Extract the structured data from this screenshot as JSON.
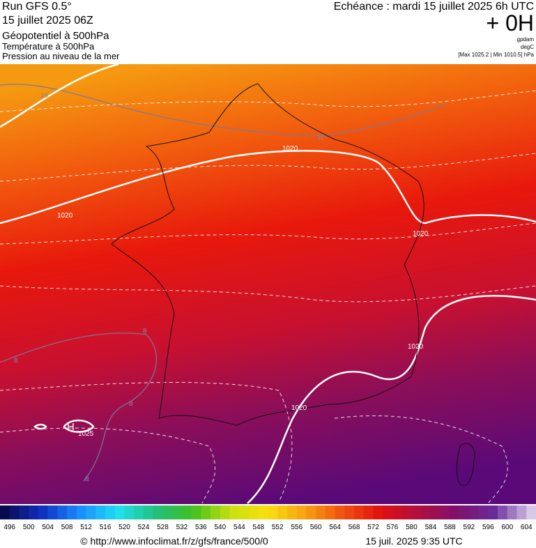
{
  "header": {
    "run": "Run GFS 0.5°",
    "date": "15 juillet 2025 06Z",
    "variable": "Géopotentiel à 500hPa",
    "temperature": "Température à 500hPa",
    "pressure": "Pression au niveau de la mer",
    "echeance": "Echéance : mardi 15 juillet 2025 6h UTC",
    "lead": "+ 0H",
    "units": [
      "gpdam",
      "degC"
    ],
    "range": "[Max 1025.2 | Min 1010.5] hPa"
  },
  "map": {
    "isobar_labels": [
      "1020",
      "1020",
      "1020",
      "1020",
      "1020",
      "1025"
    ],
    "high_marker": "H",
    "temperature_labels": [
      "16",
      "16",
      "8",
      "8",
      "8",
      "8"
    ]
  },
  "scale": {
    "labels": [
      496,
      500,
      504,
      508,
      512,
      516,
      520,
      524,
      528,
      532,
      536,
      540,
      544,
      548,
      552,
      556,
      560,
      564,
      568,
      572,
      576,
      580,
      584,
      588,
      592,
      596,
      600,
      604
    ]
  },
  "footer": {
    "url": "© http://www.infoclimat.fr/z/gfs/france/500/0",
    "timestamp": "15 juil. 2025  9:35 UTC"
  }
}
